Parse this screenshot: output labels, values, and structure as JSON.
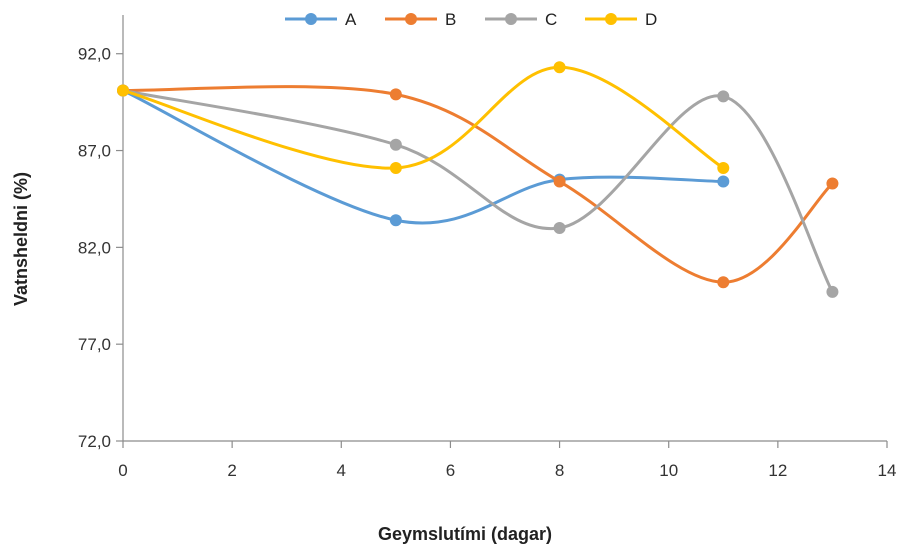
{
  "chart_data": {
    "type": "line",
    "title": "",
    "xlabel": "Geymslutími (dagar)",
    "ylabel": "Vatnsheldni (%)",
    "xlim": [
      0,
      14
    ],
    "ylim": [
      72,
      94
    ],
    "x_ticks": [
      0,
      2,
      4,
      6,
      8,
      10,
      12,
      14
    ],
    "x_tick_labels": [
      "0",
      "2",
      "4",
      "6",
      "8",
      "10",
      "12",
      "14"
    ],
    "y_ticks": [
      72,
      77,
      82,
      87,
      92
    ],
    "y_tick_labels": [
      "72,0",
      "77,0",
      "82,0",
      "87,0",
      "92,0"
    ],
    "grid": false,
    "smooth": true,
    "legend_position": "top",
    "series": [
      {
        "name": "A",
        "color": "#5B9BD5",
        "x": [
          0,
          5,
          8,
          11
        ],
        "y": [
          90.1,
          83.4,
          85.5,
          85.4
        ]
      },
      {
        "name": "B",
        "color": "#ED7D31",
        "x": [
          0,
          5,
          8,
          11,
          13
        ],
        "y": [
          90.1,
          89.9,
          85.4,
          80.2,
          85.3
        ]
      },
      {
        "name": "C",
        "color": "#A5A5A5",
        "x": [
          0,
          5,
          8,
          11,
          13
        ],
        "y": [
          90.1,
          87.3,
          83.0,
          89.8,
          79.7
        ]
      },
      {
        "name": "D",
        "color": "#FFC000",
        "x": [
          0,
          5,
          8,
          11
        ],
        "y": [
          90.1,
          86.1,
          91.3,
          86.1
        ]
      }
    ]
  }
}
